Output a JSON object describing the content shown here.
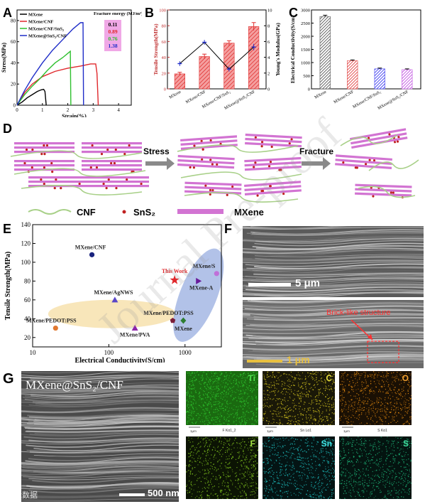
{
  "panels": {
    "A": "A",
    "B": "B",
    "C": "C",
    "D": "D",
    "E": "E",
    "F": "F",
    "G": "G"
  },
  "chart_data": [
    {
      "panel": "A",
      "type": "line",
      "xlabel": "Strain(%)",
      "ylabel": "Stress(MPa)",
      "xlim": [
        0,
        4.5
      ],
      "ylim": [
        0,
        90
      ],
      "xticks": [
        "0",
        "1",
        "2",
        "3",
        "4"
      ],
      "yticks": [
        "0",
        "20",
        "40",
        "60",
        "80"
      ],
      "legend_position": "top-left",
      "legend_title": "Fracture energy (MJ/m³)",
      "series": [
        {
          "name": "MXene",
          "color": "#000000",
          "energy": "0.11",
          "points": [
            [
              0,
              0
            ],
            [
              0.2,
              3
            ],
            [
              0.4,
              7
            ],
            [
              0.6,
              10
            ],
            [
              0.8,
              13
            ],
            [
              0.95,
              14.5
            ],
            [
              1.05,
              15
            ],
            [
              1.1,
              13
            ],
            [
              1.15,
              0
            ]
          ]
        },
        {
          "name": "MXene/CNF",
          "color": "#e0282c",
          "energy": "0.89",
          "points": [
            [
              0,
              0
            ],
            [
              0.3,
              12
            ],
            [
              0.6,
              20
            ],
            [
              1.0,
              27
            ],
            [
              1.5,
              32
            ],
            [
              2.0,
              35
            ],
            [
              2.5,
              37
            ],
            [
              2.9,
              39
            ],
            [
              3.1,
              39
            ],
            [
              3.15,
              30
            ],
            [
              3.2,
              0
            ]
          ]
        },
        {
          "name": "MXene/CNF/SnS₂",
          "color": "#2fc02f",
          "energy": "0.76",
          "points": [
            [
              0,
              0
            ],
            [
              0.3,
              10
            ],
            [
              0.6,
              18
            ],
            [
              0.9,
              25
            ],
            [
              1.2,
              33
            ],
            [
              1.5,
              40
            ],
            [
              1.8,
              45
            ],
            [
              2.0,
              49
            ],
            [
              2.1,
              51
            ],
            [
              2.12,
              0
            ]
          ]
        },
        {
          "name": "MXene@SnS₂/CNF",
          "color": "#1f2dc8",
          "energy": "1.38",
          "points": [
            [
              0,
              0
            ],
            [
              0.3,
              14
            ],
            [
              0.6,
              26
            ],
            [
              1.0,
              40
            ],
            [
              1.4,
              52
            ],
            [
              1.8,
              62
            ],
            [
              2.2,
              72
            ],
            [
              2.5,
              78
            ],
            [
              2.6,
              78
            ],
            [
              2.62,
              0
            ]
          ]
        }
      ]
    },
    {
      "panel": "B",
      "type": "bar",
      "categories": [
        "MXene",
        "MXene/CNF",
        "MXene/CNF/SnS₂",
        "MXene@SnS₂/CNF"
      ],
      "ylabel": "Tensile Strength(MPa)",
      "y2label": "Young's Modulus(GPa)",
      "ylim": [
        0,
        100
      ],
      "y2lim": [
        0,
        10
      ],
      "yticks": [
        "0",
        "20",
        "40",
        "60",
        "80",
        "100"
      ],
      "y2ticks": [
        "0",
        "2",
        "4",
        "6",
        "8",
        "10"
      ],
      "values": [
        19,
        41,
        58,
        79
      ],
      "errors": [
        2,
        3,
        3,
        5
      ],
      "modulus": [
        3.2,
        5.9,
        2.5,
        5.3
      ],
      "modulus_errors": [
        0.3,
        0.3,
        0.3,
        0.4
      ]
    },
    {
      "panel": "C",
      "type": "bar",
      "categories": [
        "MXene",
        "MXene/CNF",
        "MXene/CNF/SnS₂",
        "MXene@SnS₂/CNF"
      ],
      "ylabel": "Electrical Conductivity(S/cm)",
      "ylim": [
        0,
        3000
      ],
      "yticks": [
        "0",
        "500",
        "1000",
        "1500",
        "2000",
        "2500",
        "3000"
      ],
      "values": [
        2750,
        1070,
        760,
        730
      ],
      "errors": [
        50,
        30,
        30,
        30
      ],
      "colors": [
        "#555555",
        "#e24040",
        "#3a3af0",
        "#c050e0"
      ]
    },
    {
      "panel": "E",
      "type": "scatter",
      "xlabel": "Electrical Conductivity(S/cm)",
      "ylabel": "Tensile Strength(MPa)",
      "xscale": "log",
      "xlim": [
        10,
        3000
      ],
      "ylim": [
        10,
        140
      ],
      "xticks": [
        "10",
        "100",
        "1000"
      ],
      "yticks": [
        "20",
        "40",
        "60",
        "80",
        "100",
        "120",
        "140"
      ],
      "points": [
        {
          "label": "MXene/CNF",
          "x": 60,
          "y": 108,
          "color": "#1a237e",
          "shape": "circle"
        },
        {
          "label": "This Work",
          "x": 730,
          "y": 81,
          "color": "#e0282c",
          "shape": "star"
        },
        {
          "label": "MXene/S",
          "x": 2600,
          "y": 88,
          "color": "#c070d8",
          "shape": "circle"
        },
        {
          "label": "MXene-A",
          "x": 1500,
          "y": 80,
          "color": "#6a1b9a",
          "shape": "triangle-right"
        },
        {
          "label": "MXene/AgNWS",
          "x": 120,
          "y": 60,
          "color": "#5a46c8",
          "shape": "triangle-up"
        },
        {
          "label": "MXene/PEDOT:PSS",
          "x": 690,
          "y": 38,
          "color": "#7b1f3a",
          "shape": "pentagon"
        },
        {
          "label": "MXene",
          "x": 950,
          "y": 38,
          "color": "#2e7d32",
          "shape": "diamond"
        },
        {
          "label": "MXene/PEDOT:PSS",
          "x": 20,
          "y": 30,
          "color": "#e07830",
          "shape": "circle"
        },
        {
          "label": "MXene/PVA",
          "x": 220,
          "y": 30,
          "color": "#8e24aa",
          "shape": "triangle-up"
        }
      ]
    }
  ],
  "panel_d": {
    "stages": [
      "Stress",
      "Fracture"
    ],
    "legend": [
      "CNF",
      "SnS₂",
      "MXene"
    ],
    "colors": {
      "mxene": "#d274d2",
      "sns2": "#c02020",
      "cnf": "#a8d088",
      "arrow": "#8a8a8a"
    }
  },
  "panel_f": {
    "scale_top": "5 μm",
    "scale_bottom": "1 μm",
    "annotation": "Brick-like structure"
  },
  "panel_g": {
    "sample_label": "MXene@SnS₂/CNF",
    "scale": "500 nm",
    "maps": [
      {
        "element": "Ti",
        "color": "#30c830",
        "base": "#1a6a10",
        "caption": "1μm",
        "line": "F Kα1_2",
        "label_color": "#50e050"
      },
      {
        "element": "C",
        "color": "#d8c820",
        "base": "#1a1808",
        "caption": "1μm",
        "line": "Sn Lα1",
        "label_color": "#e8e040"
      },
      {
        "element": "O",
        "color": "#e08810",
        "base": "#1a1004",
        "caption": "1μm",
        "line": "S Kα1",
        "label_color": "#f0a030"
      },
      {
        "element": "F",
        "color": "#88d020",
        "base": "#0c1404",
        "caption": "",
        "line": "",
        "label_color": "#a0e040"
      },
      {
        "element": "Sn",
        "color": "#20c8c8",
        "base": "#041414",
        "caption": "",
        "line": "",
        "label_color": "#40e8e8"
      },
      {
        "element": "S",
        "color": "#20c080",
        "base": "#041410",
        "caption": "",
        "line": "",
        "label_color": "#40e0a0"
      }
    ]
  },
  "watermark": {
    "text": "Journal Pre-proof",
    "corner": "大数据"
  }
}
